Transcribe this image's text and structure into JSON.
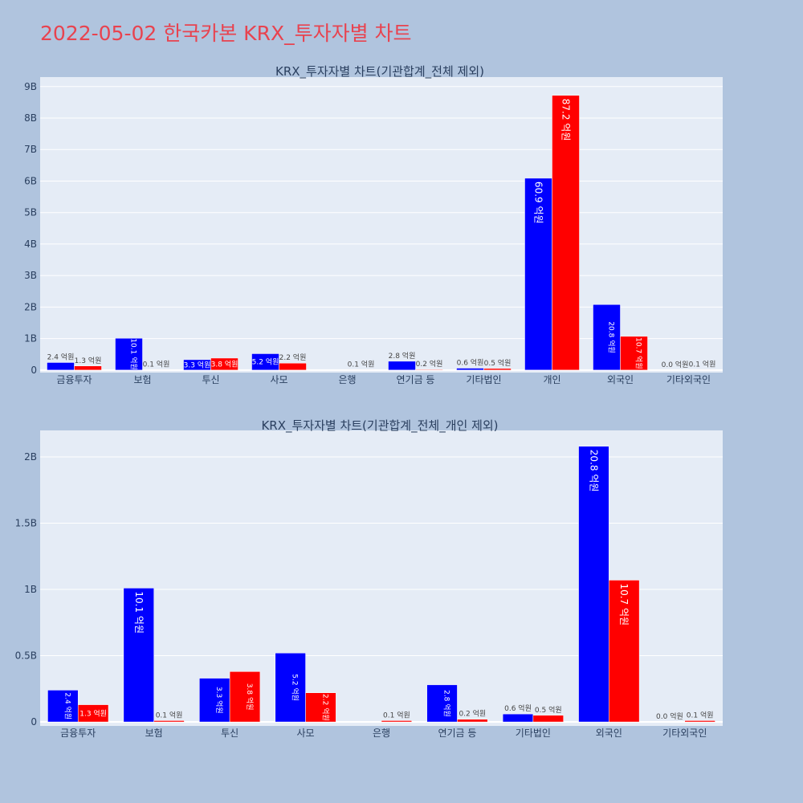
{
  "page": {
    "title": "2022-05-02 한국카본 KRX_투자자별 차트"
  },
  "colors": {
    "background": "#b0c4de",
    "plot_bg": "#e5ecf6",
    "series_blue": "#0000ff",
    "series_red": "#ff0000",
    "title": "#e8434f"
  },
  "chart_data": [
    {
      "type": "bar",
      "title": "KRX_투자자별 차트(기관합계_전체 제외)",
      "categories": [
        "금융투자",
        "보험",
        "투신",
        "사모",
        "은행",
        "연기금 등",
        "기타법인",
        "개인",
        "외국인",
        "기타외국인"
      ],
      "series": [
        {
          "color": "#0000ff",
          "values": [
            0.24,
            1.01,
            0.33,
            0.52,
            0.0,
            0.28,
            0.06,
            6.09,
            2.08,
            0.0
          ],
          "labels": [
            "2.4 억원",
            "10.1 억원",
            "3.3 억원",
            "5.2 억원",
            "",
            "2.8 억원",
            "0.6 억원",
            "60.9 억원",
            "20.8 억원",
            "0.0 억원"
          ]
        },
        {
          "color": "#ff0000",
          "values": [
            0.13,
            0.01,
            0.38,
            0.22,
            0.01,
            0.02,
            0.05,
            8.72,
            1.07,
            0.01
          ],
          "labels": [
            "1.3 억원",
            "0.1 억원",
            "3.8 억원",
            "2.2 억원",
            "0.1 억원",
            "0.2 억원",
            "0.5 억원",
            "87.2 억원",
            "10.7 억원",
            "0.1 억원"
          ]
        }
      ],
      "unit": "B",
      "yticks": [
        0,
        1,
        2,
        3,
        4,
        5,
        6,
        7,
        8,
        9
      ],
      "ytick_labels": [
        "0",
        "1B",
        "2B",
        "3B",
        "4B",
        "5B",
        "6B",
        "7B",
        "8B",
        "9B"
      ],
      "ylim": [
        -0.08,
        9.3
      ],
      "grid": true
    },
    {
      "type": "bar",
      "title": "KRX_투자자별 차트(기관합계_전체_개인 제외)",
      "categories": [
        "금융투자",
        "보험",
        "투신",
        "사모",
        "은행",
        "연기금 등",
        "기타법인",
        "외국인",
        "기타외국인"
      ],
      "series": [
        {
          "color": "#0000ff",
          "values": [
            0.24,
            1.01,
            0.33,
            0.52,
            0.0,
            0.28,
            0.06,
            2.08,
            0.0
          ],
          "labels": [
            "2.4 억원",
            "10.1 억원",
            "3.3 억원",
            "5.2 억원",
            "",
            "2.8 억원",
            "0.6 억원",
            "20.8 억원",
            "0.0 억원"
          ]
        },
        {
          "color": "#ff0000",
          "values": [
            0.13,
            0.01,
            0.38,
            0.22,
            0.01,
            0.02,
            0.05,
            1.07,
            0.01
          ],
          "labels": [
            "1.3 억원",
            "0.1 억원",
            "3.8 억원",
            "2.2 억원",
            "0.1 억원",
            "0.2 억원",
            "0.5 억원",
            "10.7 억원",
            "0.1 억원"
          ]
        }
      ],
      "unit": "B",
      "yticks": [
        0,
        0.5,
        1,
        1.5,
        2
      ],
      "ytick_labels": [
        "0",
        "0.5B",
        "1B",
        "1.5B",
        "2B"
      ],
      "ylim": [
        -0.03,
        2.2
      ],
      "grid": true
    }
  ]
}
